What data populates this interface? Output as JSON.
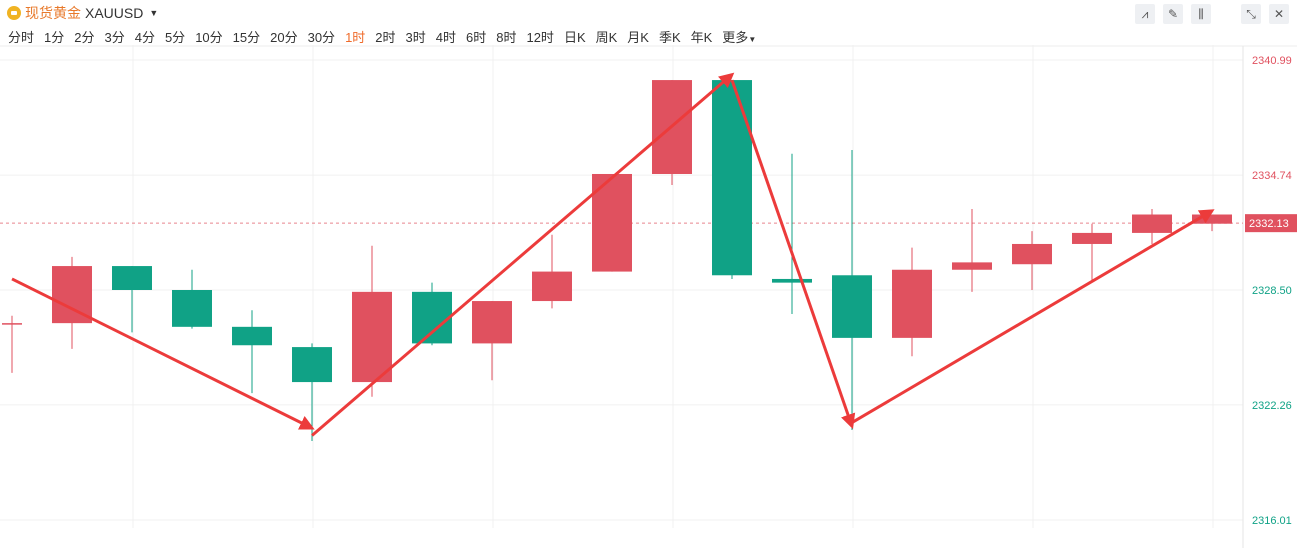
{
  "header": {
    "symbol_name": "现货黄金",
    "symbol_code": "XAUUSD",
    "tools": [
      "line-tool-icon",
      "pen-icon",
      "candle-settings-icon",
      "collapse-icon",
      "close-icon"
    ]
  },
  "periods": {
    "items": [
      "分时",
      "1分",
      "2分",
      "3分",
      "4分",
      "5分",
      "10分",
      "15分",
      "20分",
      "30分",
      "1时",
      "2时",
      "3时",
      "4时",
      "6时",
      "8时",
      "12时",
      "日K",
      "周K",
      "月K",
      "季K",
      "年K"
    ],
    "active": "1时",
    "more_label": "更多"
  },
  "colors": {
    "up": "#e0515f",
    "down": "#10a286",
    "arrow": "#ec3b3b",
    "axis_up": "#e0515f",
    "axis_down": "#10a286"
  },
  "chart_data": {
    "type": "candlestick",
    "y_ticks": [
      {
        "label": "2340.99",
        "value": 2340.99,
        "color": "up"
      },
      {
        "label": "2334.74",
        "value": 2334.74,
        "color": "up"
      },
      {
        "label": "2328.50",
        "value": 2328.5,
        "color": "down"
      },
      {
        "label": "2322.26",
        "value": 2322.26,
        "color": "down"
      },
      {
        "label": "2316.01",
        "value": 2316.01,
        "color": "down"
      }
    ],
    "ylim": [
      2316.01,
      2340.99
    ],
    "current_price": "2332.13",
    "candles": [
      {
        "open": 2326.7,
        "close": 2326.7,
        "high": 2327.1,
        "low": 2324.0
      },
      {
        "open": 2326.7,
        "close": 2329.8,
        "high": 2330.3,
        "low": 2325.3
      },
      {
        "open": 2329.8,
        "close": 2328.5,
        "high": 2329.8,
        "low": 2326.2
      },
      {
        "open": 2328.5,
        "close": 2326.5,
        "high": 2329.6,
        "low": 2326.4
      },
      {
        "open": 2326.5,
        "close": 2325.5,
        "high": 2327.4,
        "low": 2322.9
      },
      {
        "open": 2325.4,
        "close": 2323.5,
        "high": 2325.6,
        "low": 2320.3
      },
      {
        "open": 2323.5,
        "close": 2328.4,
        "high": 2330.9,
        "low": 2322.7
      },
      {
        "open": 2328.4,
        "close": 2325.6,
        "high": 2328.9,
        "low": 2325.5
      },
      {
        "open": 2325.6,
        "close": 2327.9,
        "high": 2327.9,
        "low": 2323.6
      },
      {
        "open": 2327.9,
        "close": 2329.5,
        "high": 2331.5,
        "low": 2327.5
      },
      {
        "open": 2329.5,
        "close": 2334.8,
        "high": 2334.8,
        "low": 2329.5
      },
      {
        "open": 2334.8,
        "close": 2339.9,
        "high": 2339.9,
        "low": 2334.2
      },
      {
        "open": 2339.9,
        "close": 2329.3,
        "high": 2339.9,
        "low": 2329.1
      },
      {
        "open": 2329.1,
        "close": 2328.9,
        "high": 2335.9,
        "low": 2327.2
      },
      {
        "open": 2329.3,
        "close": 2325.9,
        "high": 2336.1,
        "low": 2320.9
      },
      {
        "open": 2325.9,
        "close": 2329.6,
        "high": 2330.8,
        "low": 2324.9
      },
      {
        "open": 2329.6,
        "close": 2330.0,
        "high": 2332.9,
        "low": 2328.4
      },
      {
        "open": 2329.9,
        "close": 2331.0,
        "high": 2331.7,
        "low": 2328.5
      },
      {
        "open": 2331.0,
        "close": 2331.6,
        "high": 2332.1,
        "low": 2329.0
      },
      {
        "open": 2331.6,
        "close": 2332.6,
        "high": 2332.9,
        "low": 2331.0
      },
      {
        "open": 2332.1,
        "close": 2332.6,
        "high": 2332.6,
        "low": 2331.7
      }
    ],
    "arrows": [
      {
        "from": [
          0,
          2329.1
        ],
        "to": [
          5,
          2321.0
        ]
      },
      {
        "from": [
          5,
          2320.6
        ],
        "to": [
          12,
          2340.2
        ]
      },
      {
        "from": [
          12,
          2339.9
        ],
        "to": [
          14,
          2321.1
        ]
      },
      {
        "from": [
          14,
          2321.3
        ],
        "to": [
          20,
          2332.8
        ]
      }
    ]
  }
}
